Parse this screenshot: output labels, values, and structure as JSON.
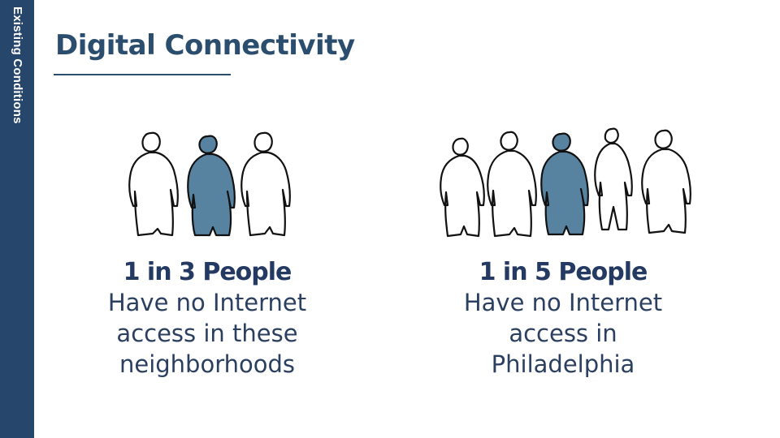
{
  "sidebar": {
    "label": "Existing Conditions"
  },
  "header": {
    "title": "Digital Connectivity"
  },
  "colors": {
    "sidebar": "#27466b",
    "title": "#2b4d6e",
    "highlight_person": "#5783a1",
    "text": "#2b3f60"
  },
  "stats": [
    {
      "headline": "1 in 3 People",
      "description": [
        "Have no Internet",
        "access in these",
        "neighborhoods"
      ],
      "total": 3,
      "highlighted_index": 1
    },
    {
      "headline": "1 in 5 People",
      "description": [
        "Have no Internet",
        "access in",
        "Philadelphia"
      ],
      "total": 5,
      "highlighted_index": 2
    }
  ]
}
